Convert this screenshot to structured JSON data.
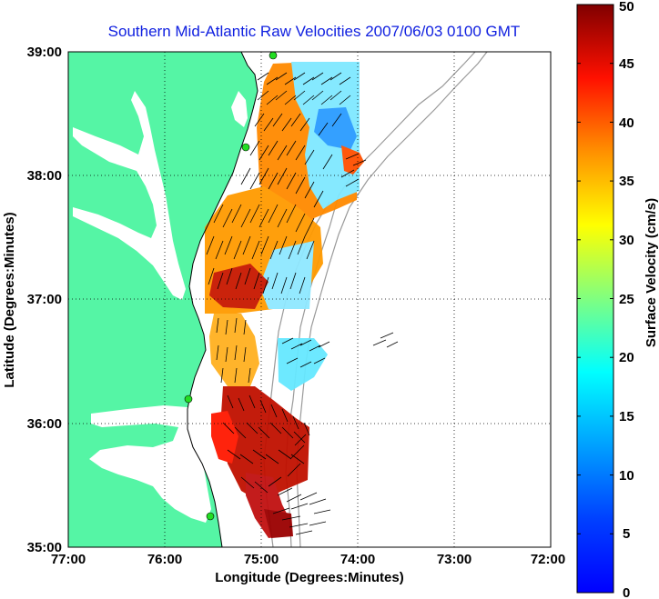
{
  "title": "Southern Mid-Atlantic Raw Velocities 2007/06/03 0100 GMT",
  "map": {
    "x_label": "Longitude (Degrees:Minutes)",
    "y_label": "Latitude (Degrees:Minutes)",
    "x_ticks": [
      "77:00",
      "76:00",
      "75:00",
      "74:00",
      "73:00",
      "72:00"
    ],
    "y_ticks": [
      "39:00",
      "38:00",
      "37:00",
      "36:00",
      "35:00"
    ],
    "lon_range": [
      -77,
      -72
    ],
    "lat_range": [
      35,
      39
    ],
    "grid": "dotted",
    "land_color": "#55f5a5",
    "station_color": "#22dd22"
  },
  "colorbar": {
    "label": "Surface Velocity (cm/s)",
    "ticks": [
      "50",
      "45",
      "40",
      "35",
      "30",
      "25",
      "20",
      "15",
      "10",
      "5",
      "0"
    ],
    "range": [
      0,
      50
    ],
    "colormap": "jet"
  }
}
